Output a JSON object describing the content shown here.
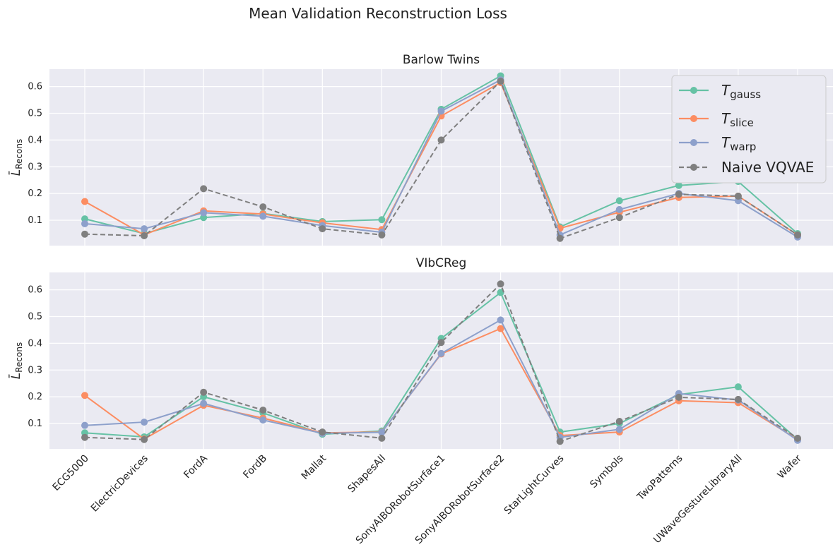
{
  "figure": {
    "title": "Mean Validation Reconstruction Loss"
  },
  "chart_data": {
    "type": "line",
    "categories": [
      "ECG5000",
      "ElectricDevices",
      "FordA",
      "FordB",
      "Mallat",
      "ShapesAll",
      "SonyAIBORobotSurface1",
      "SonyAIBORobotSurface2",
      "StarLightCurves",
      "Symbols",
      "TwoPatterns",
      "UWaveGestureLibraryAll",
      "Wafer"
    ],
    "yticks": [
      0.1,
      0.2,
      0.3,
      0.4,
      0.5,
      0.6
    ],
    "ylabel": "L̄",
    "ylabel_sub": "Recons",
    "legend_position": "top-right",
    "grid": true,
    "colors": {
      "gauss": "#66c2a5",
      "slice": "#fc8d62",
      "warp": "#8da0cb",
      "naive": "#7f7f7f",
      "panel_bg": "#eaeaf2"
    },
    "panels": [
      {
        "title": "Barlow Twins",
        "ylim": [
          0.005,
          0.665
        ],
        "series": [
          {
            "key": "gauss",
            "values": [
              0.105,
              0.05,
              0.11,
              0.125,
              0.095,
              0.102,
              0.515,
              0.64,
              0.075,
              0.173,
              0.23,
              0.245,
              0.05
            ]
          },
          {
            "key": "slice",
            "values": [
              0.17,
              0.045,
              0.135,
              0.123,
              0.09,
              0.065,
              0.49,
              0.615,
              0.07,
              0.13,
              0.185,
              0.19,
              0.045
            ]
          },
          {
            "key": "warp",
            "values": [
              0.087,
              0.068,
              0.128,
              0.115,
              0.08,
              0.055,
              0.508,
              0.625,
              0.045,
              0.14,
              0.2,
              0.173,
              0.037
            ]
          },
          {
            "key": "naive",
            "values": [
              0.048,
              0.042,
              0.218,
              0.15,
              0.068,
              0.045,
              0.4,
              0.62,
              0.032,
              0.11,
              0.197,
              0.19,
              0.045
            ]
          }
        ]
      },
      {
        "title": "VIbCReg",
        "ylim": [
          0.005,
          0.665
        ],
        "series": [
          {
            "key": "gauss",
            "values": [
              0.065,
              0.05,
              0.2,
              0.14,
              0.06,
              0.072,
              0.418,
              0.59,
              0.068,
              0.1,
              0.208,
              0.237,
              0.04
            ]
          },
          {
            "key": "slice",
            "values": [
              0.205,
              0.042,
              0.168,
              0.12,
              0.065,
              0.068,
              0.36,
              0.455,
              0.055,
              0.068,
              0.185,
              0.178,
              0.04
            ]
          },
          {
            "key": "warp",
            "values": [
              0.093,
              0.105,
              0.175,
              0.113,
              0.063,
              0.067,
              0.362,
              0.487,
              0.048,
              0.078,
              0.212,
              0.188,
              0.037
            ]
          },
          {
            "key": "naive",
            "values": [
              0.048,
              0.04,
              0.217,
              0.15,
              0.068,
              0.045,
              0.403,
              0.622,
              0.033,
              0.108,
              0.198,
              0.19,
              0.045
            ]
          }
        ]
      }
    ],
    "legend": [
      {
        "key": "gauss",
        "symbol": "T",
        "subscript": "gauss",
        "dashed": false
      },
      {
        "key": "slice",
        "symbol": "T",
        "subscript": "slice",
        "dashed": false
      },
      {
        "key": "warp",
        "symbol": "T",
        "subscript": "warp",
        "dashed": false
      },
      {
        "key": "naive",
        "label": "Naive VQVAE",
        "dashed": true
      }
    ]
  }
}
